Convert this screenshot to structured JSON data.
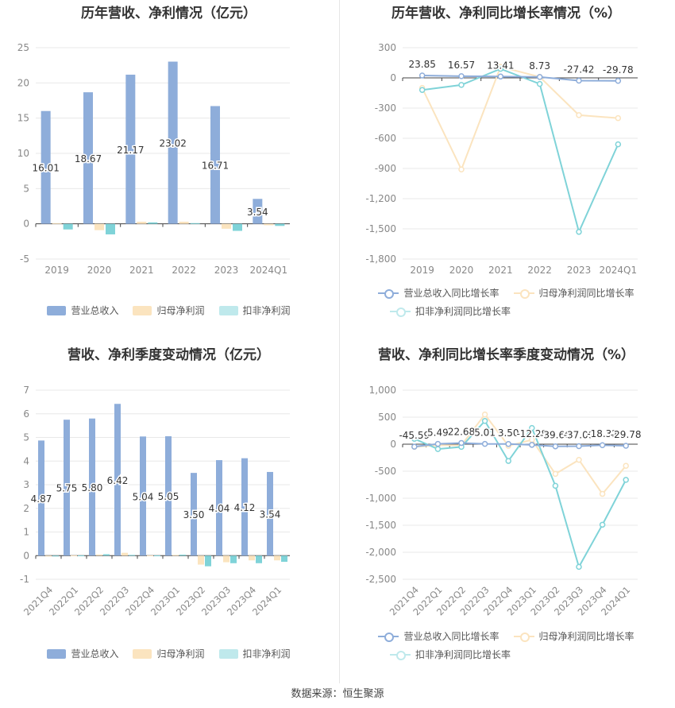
{
  "colors": {
    "revenue": "#8eadda",
    "net_profit": "#fbe4bf",
    "deducted_profit": "#7fd3d8"
  },
  "source": "数据来源：恒生聚源",
  "chart_data": [
    {
      "id": "annual-bar",
      "type": "bar",
      "title": "历年营收、净利情况（亿元）",
      "categories": [
        "2019",
        "2020",
        "2021",
        "2022",
        "2023",
        "2024Q1"
      ],
      "ylim": [
        -5,
        25
      ],
      "yticks": [
        -5,
        0,
        5,
        10,
        15,
        20,
        25
      ],
      "series": [
        {
          "name": "营业总收入",
          "values": [
            16.01,
            18.67,
            21.17,
            23.02,
            16.71,
            3.54
          ],
          "labels": [
            "16.01",
            "18.67",
            "21.17",
            "23.02",
            "16.71",
            "3.54"
          ]
        },
        {
          "name": "归母净利润",
          "values": [
            0.1,
            -0.9,
            0.3,
            0.3,
            -0.7,
            -0.2
          ]
        },
        {
          "name": "扣非净利润",
          "values": [
            -0.8,
            -1.5,
            0.2,
            0.1,
            -1.0,
            -0.3
          ]
        }
      ]
    },
    {
      "id": "annual-line",
      "type": "line",
      "title": "历年营收、净利同比增长率情况（%）",
      "categories": [
        "2019",
        "2020",
        "2021",
        "2022",
        "2023",
        "2024Q1"
      ],
      "ylim": [
        -1800,
        300
      ],
      "yticks": [
        300,
        0,
        -300,
        -600,
        -900,
        -1200,
        -1500,
        -1800
      ],
      "ytick_labels": [
        "300",
        "0",
        "-300",
        "-600",
        "-900",
        "-1,200",
        "-1,500",
        "-1,800"
      ],
      "series": [
        {
          "name": "营业总收入同比增长率",
          "values": [
            23.85,
            16.57,
            13.41,
            8.73,
            -27.42,
            -29.78
          ],
          "labels": [
            "23.85",
            "16.57",
            "13.41",
            "8.73",
            "-27.42",
            "-29.78"
          ]
        },
        {
          "name": "归母净利润同比增长率",
          "values": [
            -100,
            -910,
            110,
            10,
            -370,
            -400
          ]
        },
        {
          "name": "扣非净利润同比增长率",
          "values": [
            -120,
            -70,
            90,
            -60,
            -1530,
            -660
          ]
        }
      ]
    },
    {
      "id": "quarter-bar",
      "type": "bar",
      "title": "营收、净利季度变动情况（亿元）",
      "categories": [
        "2021Q4",
        "2022Q1",
        "2022Q2",
        "2022Q3",
        "2022Q4",
        "2023Q1",
        "2023Q2",
        "2023Q3",
        "2023Q4",
        "2024Q1"
      ],
      "ylim": [
        -1,
        7
      ],
      "yticks": [
        -1,
        0,
        1,
        2,
        3,
        4,
        5,
        6,
        7
      ],
      "series": [
        {
          "name": "营业总收入",
          "values": [
            4.87,
            5.75,
            5.8,
            6.42,
            5.04,
            5.05,
            3.5,
            4.04,
            4.12,
            3.54
          ],
          "labels": [
            "4.87",
            "5.75",
            "5.80",
            "6.42",
            "5.04",
            "5.05",
            "3.50",
            "4.04",
            "4.12",
            "3.54"
          ]
        },
        {
          "name": "归母净利润",
          "values": [
            -0.02,
            0.01,
            0.05,
            0.12,
            0.01,
            0.03,
            -0.38,
            -0.28,
            -0.2,
            -0.2
          ]
        },
        {
          "name": "扣非净利润",
          "values": [
            -0.02,
            0.01,
            0.06,
            0.03,
            0.01,
            0.04,
            -0.45,
            -0.32,
            -0.32,
            -0.26
          ]
        }
      ]
    },
    {
      "id": "quarter-line",
      "type": "line",
      "title": "营收、净利同比增长率季度变动情况（%）",
      "categories": [
        "2021Q4",
        "2022Q1",
        "2022Q2",
        "2022Q3",
        "2022Q4",
        "2023Q1",
        "2023Q2",
        "2023Q3",
        "2023Q4",
        "2024Q1"
      ],
      "ylim": [
        -2500,
        1000
      ],
      "yticks": [
        1000,
        500,
        0,
        -500,
        -1000,
        -1500,
        -2000,
        -2500
      ],
      "ytick_labels": [
        "1,000",
        "500",
        "0",
        "-500",
        "-1,000",
        "-1,500",
        "-2,000",
        "-2,500"
      ],
      "series": [
        {
          "name": "营业总收入同比增长率",
          "values": [
            -45.59,
            5.49,
            22.68,
            5.01,
            3.5,
            -12.28,
            -39.66,
            -37.09,
            -18.32,
            -29.78
          ],
          "labels": [
            "-45.59",
            "5.49",
            "22.68",
            "5.01",
            "3.50",
            "-12.28",
            "-39.66",
            "-37.09",
            "-18.32",
            "-29.78"
          ]
        },
        {
          "name": "归母净利润同比增长率",
          "values": [
            -50,
            -20,
            -20,
            550,
            -30,
            80,
            -550,
            -290,
            -920,
            -400
          ]
        },
        {
          "name": "扣非净利润同比增长率",
          "values": [
            100,
            -90,
            -50,
            430,
            -310,
            300,
            -770,
            -2270,
            -1490,
            -660
          ]
        }
      ]
    }
  ]
}
